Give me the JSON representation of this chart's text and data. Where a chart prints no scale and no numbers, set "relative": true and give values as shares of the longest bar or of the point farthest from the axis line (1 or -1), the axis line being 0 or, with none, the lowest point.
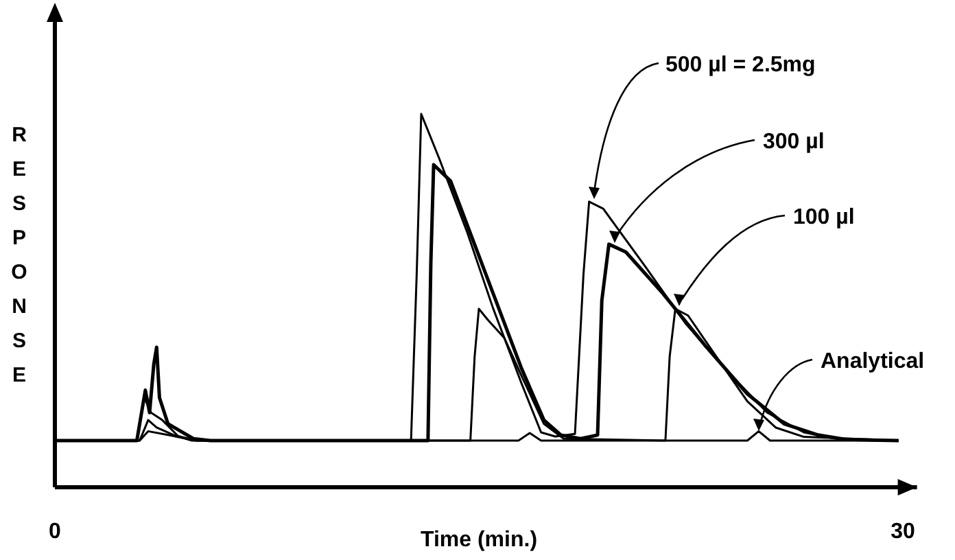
{
  "chart_data": {
    "type": "line",
    "relative": true,
    "ylabel": "RESPONSE",
    "xlabel": "Time (min.)",
    "xlim": [
      0,
      30.5
    ],
    "xticks": [
      0,
      30
    ],
    "line_style": "solid",
    "series": [
      {
        "name": "500 µl = 2.5mg",
        "color": "#000000",
        "x": [
          0,
          2.9,
          3.16,
          3.4,
          3.8,
          4.37,
          4.85,
          12.6,
          12.8,
          12.96,
          13.6,
          14.6,
          15.5,
          16.5,
          17.2,
          17.7,
          18.4,
          18.7,
          18.9,
          19.4,
          20.9,
          22.3,
          23.8,
          25.2,
          26.5,
          27.7,
          29.85
        ],
        "values": [
          0.125,
          0.125,
          0.24,
          0.2,
          0.18,
          0.136,
          0.125,
          0.125,
          0.57,
          1.0,
          0.88,
          0.68,
          0.48,
          0.28,
          0.147,
          0.136,
          0.143,
          0.57,
          0.765,
          0.746,
          0.59,
          0.44,
          0.31,
          0.2,
          0.147,
          0.129,
          0.125
        ]
      },
      {
        "name": "300 µl",
        "color": "#000000",
        "x": [
          0,
          2.9,
          3.2,
          3.35,
          3.5,
          3.6,
          3.7,
          4.0,
          4.9,
          5.5,
          13.2,
          13.3,
          13.4,
          14.0,
          14.6,
          15.5,
          16.5,
          17.3,
          17.9,
          18.6,
          19.2,
          19.35,
          19.6,
          20.2,
          21.5,
          23.0,
          24.5,
          25.8,
          27.0,
          28.0,
          29.85
        ],
        "values": [
          0.125,
          0.125,
          0.26,
          0.2,
          0.33,
          0.375,
          0.24,
          0.17,
          0.13,
          0.125,
          0.125,
          0.6,
          0.864,
          0.82,
          0.7,
          0.52,
          0.32,
          0.18,
          0.14,
          0.13,
          0.14,
          0.5,
          0.651,
          0.63,
          0.52,
          0.38,
          0.25,
          0.17,
          0.14,
          0.128,
          0.125
        ]
      },
      {
        "name": "100 µl",
        "color": "#000000",
        "x": [
          0,
          3.0,
          3.3,
          3.6,
          4.2,
          5.0,
          14.7,
          14.85,
          15.0,
          15.3,
          15.9,
          16.5,
          17.3,
          18.0,
          21.6,
          21.75,
          21.95,
          22.4,
          23.4,
          24.5,
          25.5,
          26.5,
          29.85
        ],
        "values": [
          0.125,
          0.125,
          0.18,
          0.16,
          0.14,
          0.125,
          0.125,
          0.35,
          0.478,
          0.45,
          0.4,
          0.3,
          0.17,
          0.13,
          0.125,
          0.35,
          0.478,
          0.46,
          0.35,
          0.23,
          0.16,
          0.135,
          0.125
        ]
      },
      {
        "name": "Analytical",
        "color": "#000000",
        "x": [
          0,
          3.0,
          3.3,
          4.0,
          5.0,
          16.4,
          16.8,
          17.2,
          24.5,
          24.9,
          25.3,
          29.85
        ],
        "values": [
          0.125,
          0.125,
          0.15,
          0.14,
          0.125,
          0.125,
          0.145,
          0.125,
          0.125,
          0.15,
          0.125,
          0.125
        ]
      }
    ]
  }
}
